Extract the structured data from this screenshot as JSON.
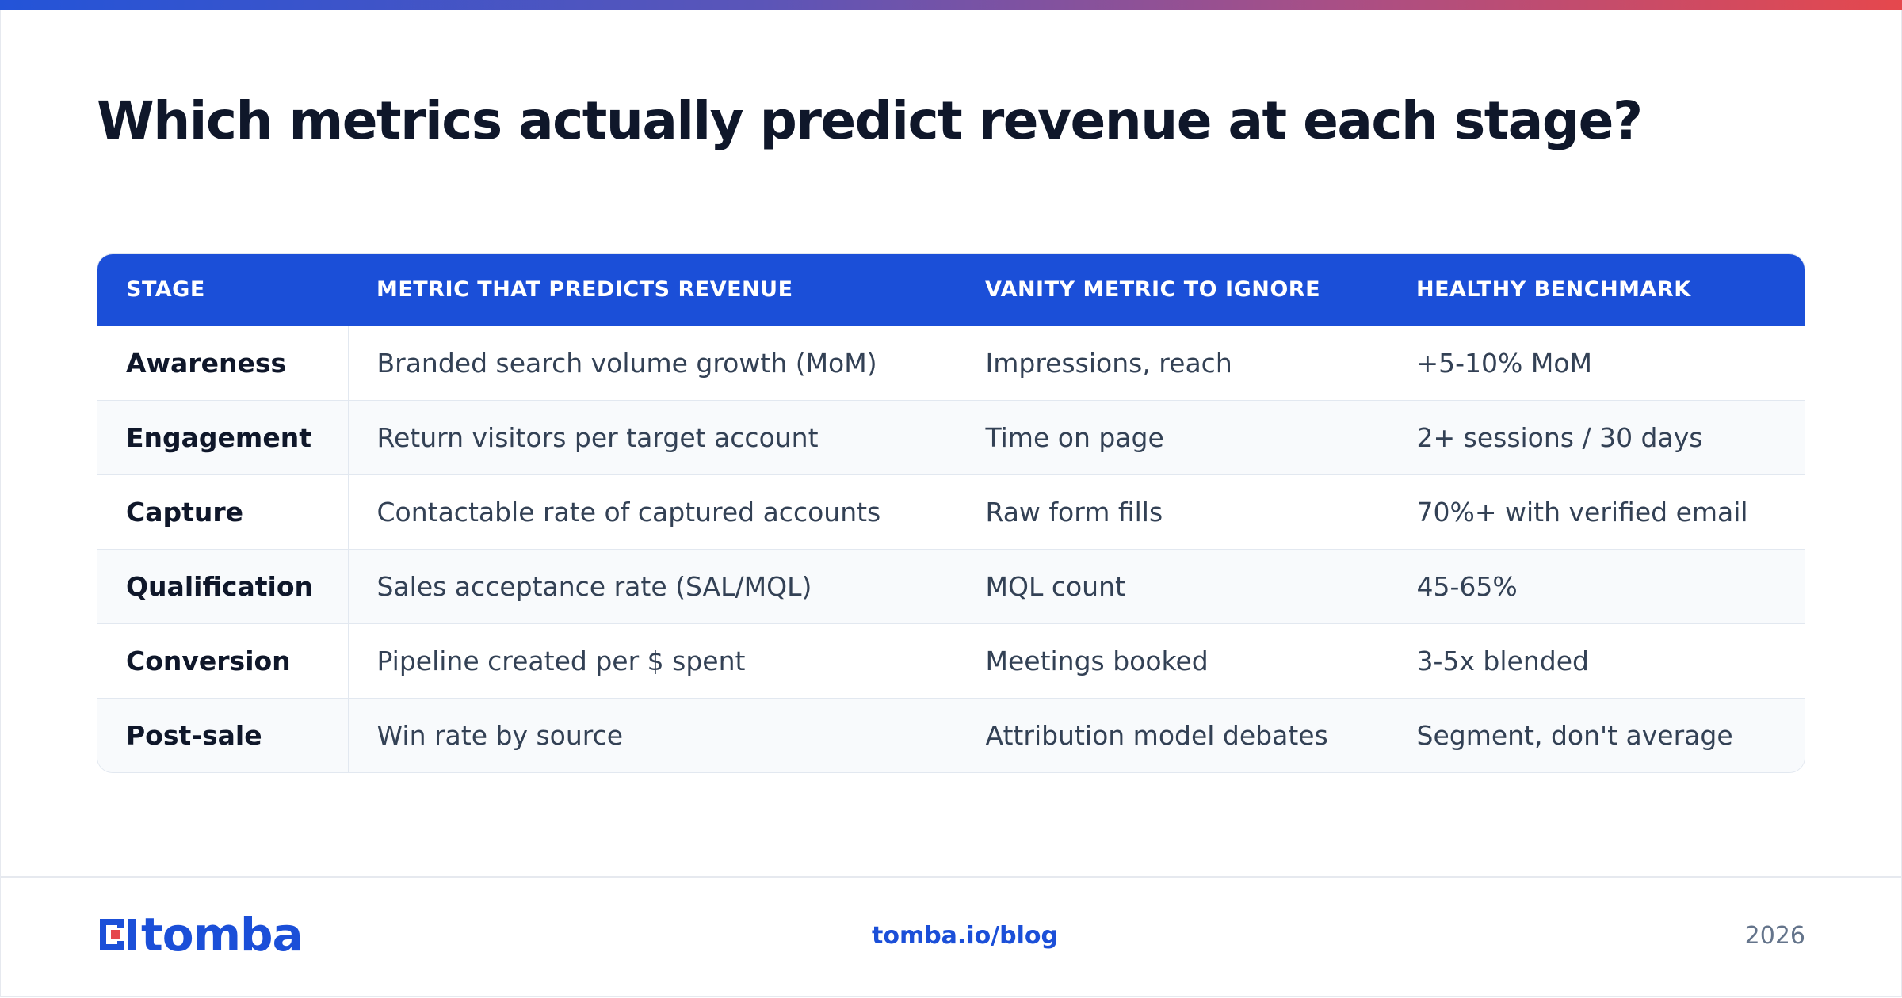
{
  "title": "Which metrics actually predict revenue at each stage?",
  "table": {
    "headers": [
      "STAGE",
      "METRIC THAT PREDICTS REVENUE",
      "VANITY METRIC TO IGNORE",
      "HEALTHY BENCHMARK"
    ],
    "rows": [
      [
        "Awareness",
        "Branded search volume growth (MoM)",
        "Impressions, reach",
        "+5-10% MoM"
      ],
      [
        "Engagement",
        "Return visitors per target account",
        "Time on page",
        "2+ sessions / 30 days"
      ],
      [
        "Capture",
        "Contactable rate of captured accounts",
        "Raw form fills",
        "70%+ with verified email"
      ],
      [
        "Qualification",
        "Sales acceptance rate (SAL/MQL)",
        "MQL count",
        "45-65%"
      ],
      [
        "Conversion",
        "Pipeline created per $ spent",
        "Meetings booked",
        "3-5x blended"
      ],
      [
        "Post-sale",
        "Win rate by source",
        "Attribution model debates",
        "Segment, don't average"
      ]
    ]
  },
  "footer": {
    "brand": "tomba",
    "link": "tomba.io/blog",
    "year": "2026"
  },
  "colors": {
    "accent": "#1b4fd8",
    "logo_red": "#e5484d",
    "gradient_start": "#2354d8",
    "gradient_end": "#e5484d"
  },
  "icons": {
    "logo_mark": "tomba-logo-icon"
  }
}
